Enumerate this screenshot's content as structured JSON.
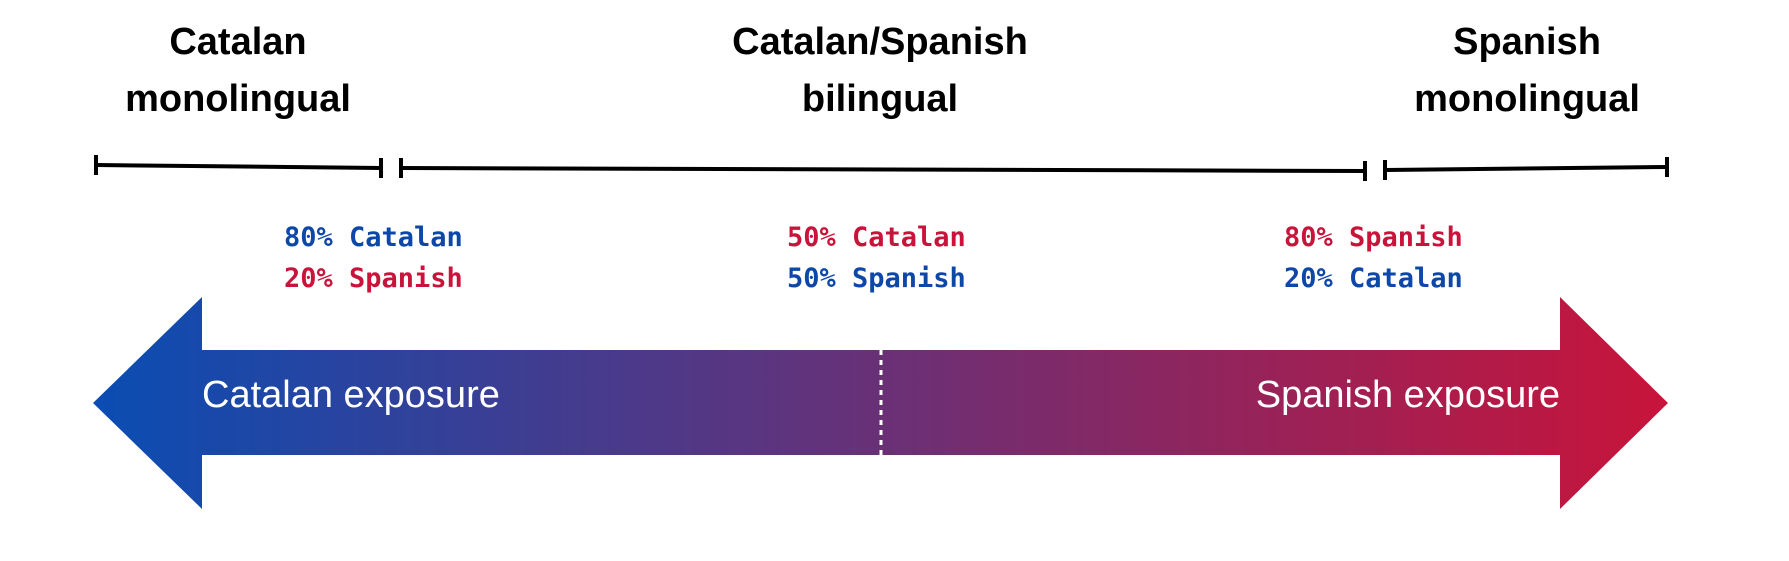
{
  "groups": [
    {
      "line1": "Catalan",
      "line2": "monolingual"
    },
    {
      "line1": "Catalan/Spanish",
      "line2": "bilingual"
    },
    {
      "line1": "Spanish",
      "line2": "monolingual"
    }
  ],
  "proportions": [
    {
      "top": "80% Catalan",
      "bottom": "20% Spanish"
    },
    {
      "top": "50% Catalan",
      "bottom": "50% Spanish"
    },
    {
      "top": "80% Spanish",
      "bottom": "20% Catalan"
    }
  ],
  "arrow": {
    "left_label": "Catalan exposure",
    "right_label": "Spanish exposure",
    "left_color": "#0a4db3",
    "right_color": "#c8143a"
  }
}
